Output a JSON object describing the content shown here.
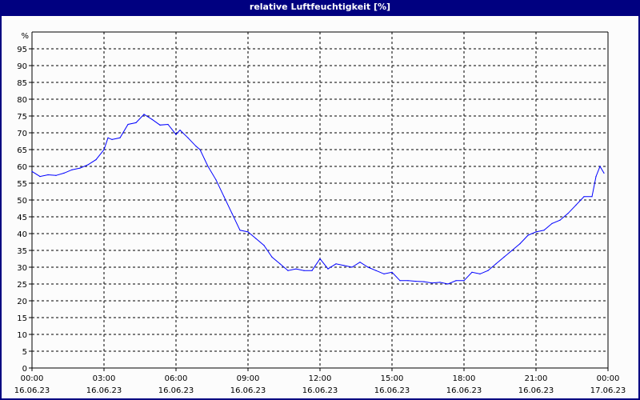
{
  "chart_data": {
    "type": "line",
    "title": "relative Luftfeuchtigkeit [%]",
    "y_unit_label": "%",
    "ylim": [
      0,
      100
    ],
    "y_ticks": [
      0,
      5,
      10,
      15,
      20,
      25,
      30,
      35,
      40,
      45,
      50,
      55,
      60,
      65,
      70,
      75,
      80,
      85,
      90,
      95
    ],
    "x_ticks": [
      {
        "time": "00:00",
        "date": "16.06.23"
      },
      {
        "time": "03:00",
        "date": "16.06.23"
      },
      {
        "time": "06:00",
        "date": "16.06.23"
      },
      {
        "time": "09:00",
        "date": "16.06.23"
      },
      {
        "time": "12:00",
        "date": "16.06.23"
      },
      {
        "time": "15:00",
        "date": "16.06.23"
      },
      {
        "time": "18:00",
        "date": "16.06.23"
      },
      {
        "time": "21:00",
        "date": "16.06.23"
      },
      {
        "time": "00:00",
        "date": "17.06.23"
      }
    ],
    "xlim": [
      "16.06.23 00:00",
      "17.06.23 00:00"
    ],
    "grid": true,
    "line_color": "#0000ff",
    "series": [
      {
        "x": [
          "00:00",
          "00:20",
          "00:40",
          "01:00",
          "01:20",
          "01:40",
          "02:00",
          "02:20",
          "02:40",
          "03:00",
          "03:10",
          "03:20",
          "03:40",
          "04:00",
          "04:20",
          "04:40",
          "05:00",
          "05:20",
          "05:40",
          "06:00",
          "06:10",
          "06:30",
          "06:50",
          "07:00",
          "07:20",
          "07:40",
          "08:00",
          "08:20",
          "08:40",
          "09:00",
          "09:20",
          "09:40",
          "10:00",
          "10:20",
          "10:40",
          "11:00",
          "11:20",
          "11:40",
          "12:00",
          "12:20",
          "12:40",
          "13:00",
          "13:20",
          "13:40",
          "14:00",
          "14:20",
          "14:40",
          "15:00",
          "15:20",
          "15:40",
          "16:00",
          "16:20",
          "16:40",
          "17:00",
          "17:20",
          "17:40",
          "18:00",
          "18:20",
          "18:40",
          "19:00",
          "19:20",
          "19:40",
          "20:00",
          "20:20",
          "20:40",
          "21:00",
          "21:20",
          "21:40",
          "22:00",
          "22:20",
          "22:40",
          "23:00",
          "23:20",
          "23:30",
          "23:40",
          "23:50"
        ],
        "values": [
          58.5,
          57,
          57.5,
          57.3,
          58,
          59,
          59.5,
          60.5,
          62,
          65,
          68.5,
          68,
          68.5,
          72.5,
          73,
          75.5,
          74,
          72.3,
          72.5,
          69.5,
          70.8,
          68.5,
          66,
          65,
          60,
          56,
          51,
          46,
          41,
          40.5,
          38.5,
          36.5,
          33,
          31,
          29,
          29.5,
          29,
          29,
          32.5,
          29.5,
          31,
          30.5,
          30,
          31.5,
          30,
          29,
          28,
          28.5,
          26,
          26,
          25.8,
          25.7,
          25.3,
          25.5,
          25,
          26,
          26,
          28.5,
          28,
          29,
          31,
          33,
          35,
          37,
          39.5,
          40.5,
          41,
          43,
          44,
          46,
          48.5,
          51,
          51,
          57,
          60,
          58
        ]
      }
    ]
  }
}
